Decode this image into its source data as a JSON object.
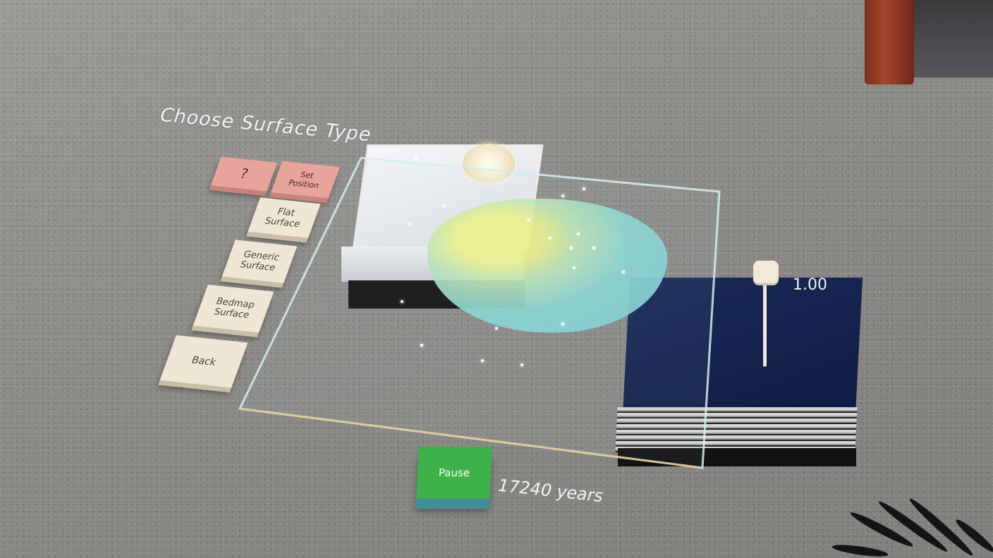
{
  "header": {
    "title": "Choose Surface Type"
  },
  "menu": {
    "help_label": "?",
    "set_position_label": "Set\nPosition",
    "flat_surface_label": "Flat\nSurface",
    "generic_surface_label": "Generic\nSurface",
    "bedmap_surface_label": "Bedmap\nSurface",
    "back_label": "Back"
  },
  "controls": {
    "pause_label": "Pause",
    "elapsed_time": "17240 years"
  },
  "readout": {
    "gauge_value": "1.00"
  },
  "colors": {
    "menu_tile": "#efe7d4",
    "menu_tile_accent": "#e8a39b",
    "pause_button": "#3fb14a",
    "ice_sheet": "#8ad6d3"
  },
  "icons": {
    "height_marker": "height-marker-icon",
    "cloud": "cloud-icon"
  }
}
